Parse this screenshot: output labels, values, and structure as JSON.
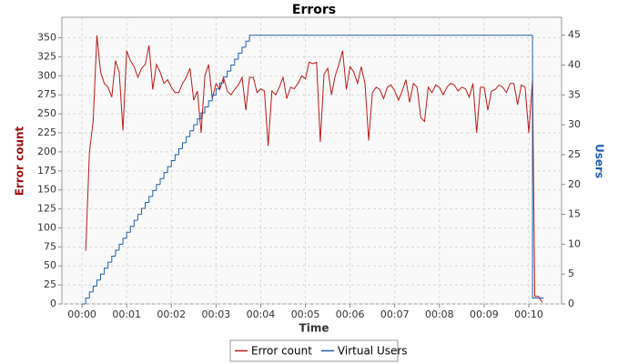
{
  "chart_data": {
    "type": "line",
    "title": "Errors",
    "x_label": "Time",
    "y_label": "Error count",
    "y2_label": "Users",
    "xlim": [
      -27,
      644
    ],
    "xticks": [
      {
        "value": 0,
        "label": "00:00"
      },
      {
        "value": 60,
        "label": "00:01"
      },
      {
        "value": 120,
        "label": "00:02"
      },
      {
        "value": 180,
        "label": "00:03"
      },
      {
        "value": 240,
        "label": "00:04"
      },
      {
        "value": 300,
        "label": "00:05"
      },
      {
        "value": 360,
        "label": "00:06"
      },
      {
        "value": 420,
        "label": "00:07"
      },
      {
        "value": 480,
        "label": "00:08"
      },
      {
        "value": 540,
        "label": "00:09"
      },
      {
        "value": 600,
        "label": "00:10"
      }
    ],
    "ylim": [
      0,
      377
    ],
    "yticks": [
      0,
      25,
      50,
      75,
      100,
      125,
      150,
      175,
      200,
      225,
      250,
      275,
      300,
      325,
      350
    ],
    "y2lim": [
      0,
      48
    ],
    "y2ticks": [
      0,
      5,
      10,
      15,
      20,
      25,
      30,
      35,
      40,
      45
    ],
    "grid": true,
    "legend": "bottom",
    "series": [
      {
        "name": "Error count",
        "color": "#bb1a1a",
        "x": [
          5,
          10,
          15,
          20,
          25,
          30,
          35,
          40,
          45,
          50,
          55,
          60,
          65,
          70,
          75,
          80,
          85,
          90,
          95,
          100,
          105,
          110,
          115,
          120,
          125,
          130,
          135,
          140,
          145,
          150,
          155,
          160,
          165,
          170,
          175,
          180,
          185,
          190,
          195,
          200,
          205,
          210,
          215,
          220,
          225,
          230,
          235,
          240,
          245,
          250,
          255,
          260,
          265,
          270,
          275,
          280,
          285,
          290,
          295,
          300,
          305,
          310,
          315,
          320,
          325,
          330,
          335,
          340,
          345,
          350,
          355,
          360,
          365,
          370,
          375,
          380,
          385,
          390,
          395,
          400,
          405,
          410,
          415,
          420,
          425,
          430,
          435,
          440,
          445,
          450,
          455,
          460,
          465,
          470,
          475,
          480,
          485,
          490,
          495,
          500,
          505,
          510,
          515,
          520,
          525,
          530,
          535,
          540,
          545,
          550,
          555,
          560,
          565,
          570,
          575,
          580,
          585,
          590,
          595,
          600,
          605,
          608,
          613,
          618
        ],
        "values": [
          70,
          200,
          240,
          353,
          305,
          290,
          285,
          272,
          320,
          305,
          228,
          333,
          320,
          312,
          298,
          310,
          315,
          340,
          282,
          315,
          305,
          290,
          295,
          285,
          278,
          278,
          290,
          298,
          310,
          268,
          280,
          225,
          300,
          315,
          270,
          290,
          282,
          298,
          280,
          275,
          282,
          288,
          298,
          255,
          298,
          298,
          278,
          283,
          280,
          208,
          280,
          275,
          285,
          298,
          270,
          285,
          283,
          290,
          300,
          296,
          318,
          316,
          318,
          213,
          302,
          310,
          275,
          300,
          315,
          333,
          282,
          312,
          305,
          290,
          312,
          290,
          215,
          278,
          285,
          282,
          270,
          285,
          288,
          280,
          268,
          280,
          295,
          265,
          290,
          285,
          245,
          240,
          285,
          278,
          288,
          285,
          275,
          285,
          290,
          288,
          280,
          285,
          283,
          272,
          290,
          225,
          285,
          285,
          255,
          280,
          282,
          288,
          285,
          278,
          290,
          290,
          262,
          288,
          285,
          225,
          295,
          10,
          10,
          2
        ]
      },
      {
        "name": "Virtual Users",
        "color": "#1f5fa8",
        "axis": "y2",
        "drawstyle": "steps-post",
        "x": [
          0,
          5,
          10,
          15,
          20,
          25,
          30,
          35,
          40,
          45,
          50,
          55,
          60,
          65,
          70,
          75,
          80,
          85,
          90,
          95,
          100,
          105,
          110,
          115,
          120,
          125,
          130,
          135,
          140,
          145,
          150,
          155,
          160,
          165,
          170,
          175,
          180,
          185,
          190,
          195,
          200,
          205,
          210,
          215,
          220,
          225,
          605,
          620
        ],
        "values": [
          0,
          1,
          2,
          3,
          4,
          5,
          6,
          7,
          8,
          9,
          10,
          11,
          12,
          13,
          14,
          15,
          16,
          17,
          18,
          19,
          20,
          21,
          22,
          23,
          24,
          25,
          26,
          27,
          28,
          29,
          30,
          31,
          32,
          33,
          34,
          35,
          36,
          37,
          38,
          39,
          40,
          41,
          42,
          43,
          44,
          45,
          1,
          1
        ]
      }
    ]
  }
}
